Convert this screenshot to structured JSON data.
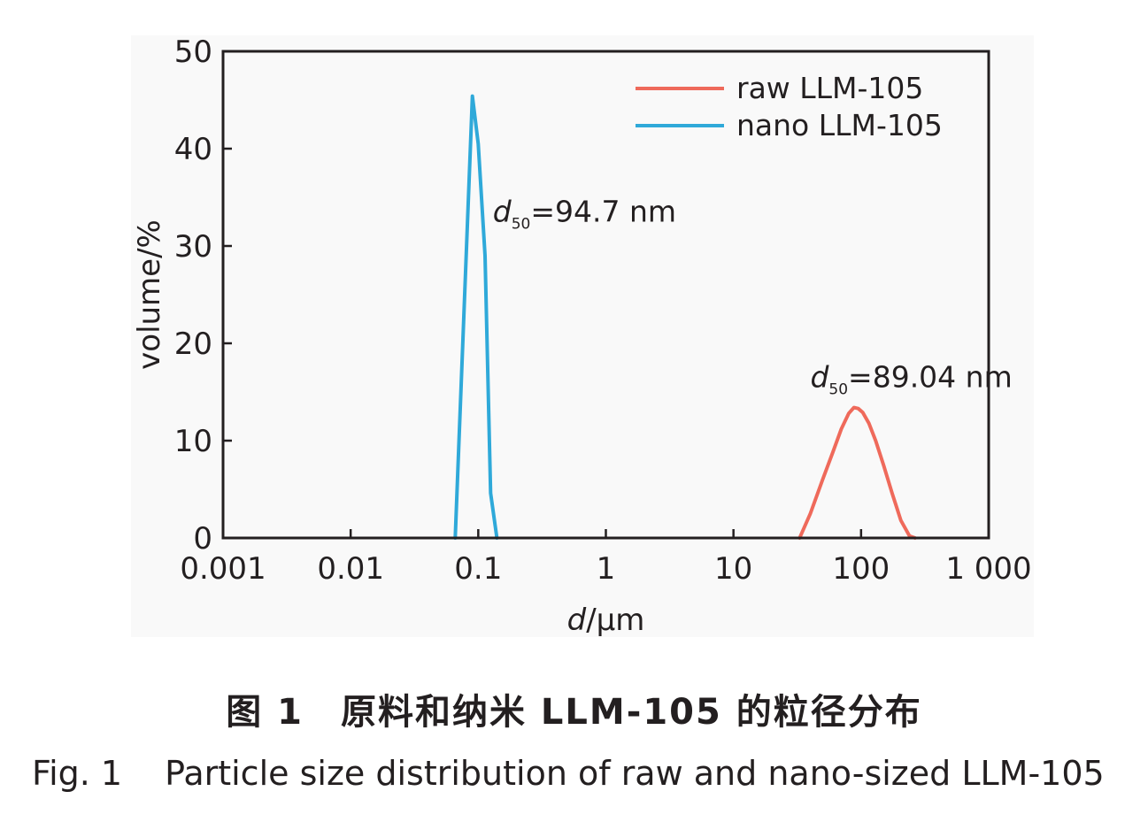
{
  "chart_data": {
    "type": "line",
    "xscale": "log",
    "xlim": [
      0.001,
      1000
    ],
    "ylim": [
      0,
      50
    ],
    "xticks": [
      0.001,
      0.01,
      0.1,
      1,
      10,
      100,
      1000
    ],
    "xtick_labels": [
      "0.001",
      "0.01",
      "0.1",
      "1",
      "10",
      "100",
      "1 000"
    ],
    "yticks": [
      0,
      10,
      20,
      30,
      40,
      50
    ],
    "ytick_labels": [
      "0",
      "10",
      "20",
      "30",
      "40",
      "50"
    ],
    "xlabel_italic": "d",
    "xlabel_rest": "/μm",
    "ylabel": "volume/%",
    "grid": false,
    "legend_position": "top-right",
    "series": [
      {
        "name": "raw LLM-105",
        "color": "#ef6a5b",
        "x": [
          33,
          40,
          50,
          60,
          70,
          80,
          88,
          95,
          103,
          115,
          130,
          150,
          175,
          205,
          240,
          265
        ],
        "y": [
          0,
          2.5,
          6.0,
          8.8,
          11.2,
          12.8,
          13.4,
          13.3,
          12.9,
          11.8,
          10.0,
          7.5,
          4.6,
          1.8,
          0.2,
          0
        ]
      },
      {
        "name": "nano LLM-105",
        "color": "#2fa9d9",
        "x": [
          0.066,
          0.09,
          0.1,
          0.113,
          0.125,
          0.14
        ],
        "y": [
          0,
          45.4,
          40.5,
          29.0,
          4.6,
          0
        ]
      }
    ],
    "annotations": [
      {
        "sub": "50",
        "text": "=94.7 nm",
        "x": 0.13,
        "y": 32.5
      },
      {
        "sub": "50",
        "text": "=89.04 nm",
        "x": 40,
        "y": 15.5
      }
    ]
  },
  "caption": {
    "zh": "图 1　原料和纳米 LLM-105 的粒径分布",
    "en_label": "Fig. 1",
    "en_text": "Particle size distribution of raw and nano-sized LLM-105"
  }
}
